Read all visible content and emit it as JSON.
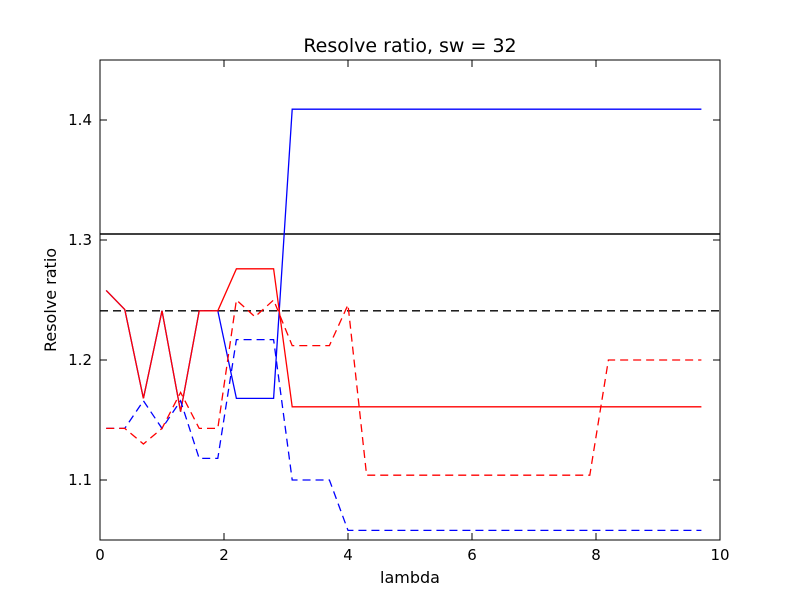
{
  "chart_data": {
    "type": "line",
    "title": "Resolve ratio, sw = 32",
    "xlabel": "lambda",
    "ylabel": "Resolve ratio",
    "xlim": [
      0,
      10
    ],
    "ylim": [
      1.05,
      1.45
    ],
    "xticks": [
      0,
      2,
      4,
      6,
      8,
      10
    ],
    "yticks": [
      1.1,
      1.2,
      1.3,
      1.4
    ],
    "xtick_labels": [
      "0",
      "2",
      "4",
      "6",
      "8",
      "10"
    ],
    "ytick_labels": [
      "1.1",
      "1.2",
      "1.3",
      "1.4"
    ],
    "grid": false,
    "legend": "none",
    "hlines": [
      {
        "y": 1.305,
        "color": "#000000",
        "style": "solid"
      },
      {
        "y": 1.241,
        "color": "#000000",
        "style": "dashed"
      }
    ],
    "series": [
      {
        "color": "#0000ff",
        "style": "solid",
        "x": [
          0.1,
          0.4,
          0.7,
          1.0,
          1.3,
          1.6,
          1.9,
          2.2,
          2.5,
          2.8,
          3.1,
          3.4,
          3.7,
          4.0,
          5.0,
          6.0,
          7.0,
          8.0,
          9.0,
          9.7
        ],
        "y": [
          1.258,
          1.242,
          1.168,
          1.241,
          1.157,
          1.241,
          1.241,
          1.168,
          1.168,
          1.168,
          1.409,
          1.409,
          1.409,
          1.409,
          1.409,
          1.409,
          1.409,
          1.409,
          1.409,
          1.409
        ]
      },
      {
        "color": "#ff0000",
        "style": "solid",
        "x": [
          0.1,
          0.4,
          0.7,
          1.0,
          1.3,
          1.6,
          1.9,
          2.2,
          2.5,
          2.8,
          3.1,
          3.4,
          3.7,
          4.0,
          5.0,
          6.0,
          7.0,
          8.0,
          9.0,
          9.7
        ],
        "y": [
          1.258,
          1.242,
          1.168,
          1.241,
          1.157,
          1.241,
          1.241,
          1.276,
          1.276,
          1.276,
          1.161,
          1.161,
          1.161,
          1.161,
          1.161,
          1.161,
          1.161,
          1.161,
          1.161,
          1.161
        ]
      },
      {
        "color": "#0000ff",
        "style": "dashed",
        "x": [
          0.1,
          0.4,
          0.7,
          1.0,
          1.3,
          1.6,
          1.9,
          2.2,
          2.5,
          2.8,
          3.1,
          3.4,
          3.7,
          4.0,
          5.0,
          6.0,
          7.0,
          8.0,
          9.0,
          9.7
        ],
        "y": [
          1.143,
          1.143,
          1.166,
          1.143,
          1.166,
          1.118,
          1.118,
          1.217,
          1.217,
          1.217,
          1.1,
          1.1,
          1.1,
          1.058,
          1.058,
          1.058,
          1.058,
          1.058,
          1.058,
          1.058
        ]
      },
      {
        "color": "#ff0000",
        "style": "dashed",
        "x": [
          0.1,
          0.4,
          0.7,
          1.0,
          1.3,
          1.6,
          1.9,
          2.2,
          2.5,
          2.8,
          3.1,
          3.4,
          3.7,
          4.0,
          4.3,
          5.0,
          6.0,
          7.0,
          7.9,
          8.2,
          9.0,
          9.7
        ],
        "y": [
          1.143,
          1.143,
          1.13,
          1.143,
          1.173,
          1.143,
          1.143,
          1.25,
          1.236,
          1.25,
          1.212,
          1.212,
          1.212,
          1.246,
          1.104,
          1.104,
          1.104,
          1.104,
          1.104,
          1.2,
          1.2,
          1.2
        ]
      }
    ]
  }
}
